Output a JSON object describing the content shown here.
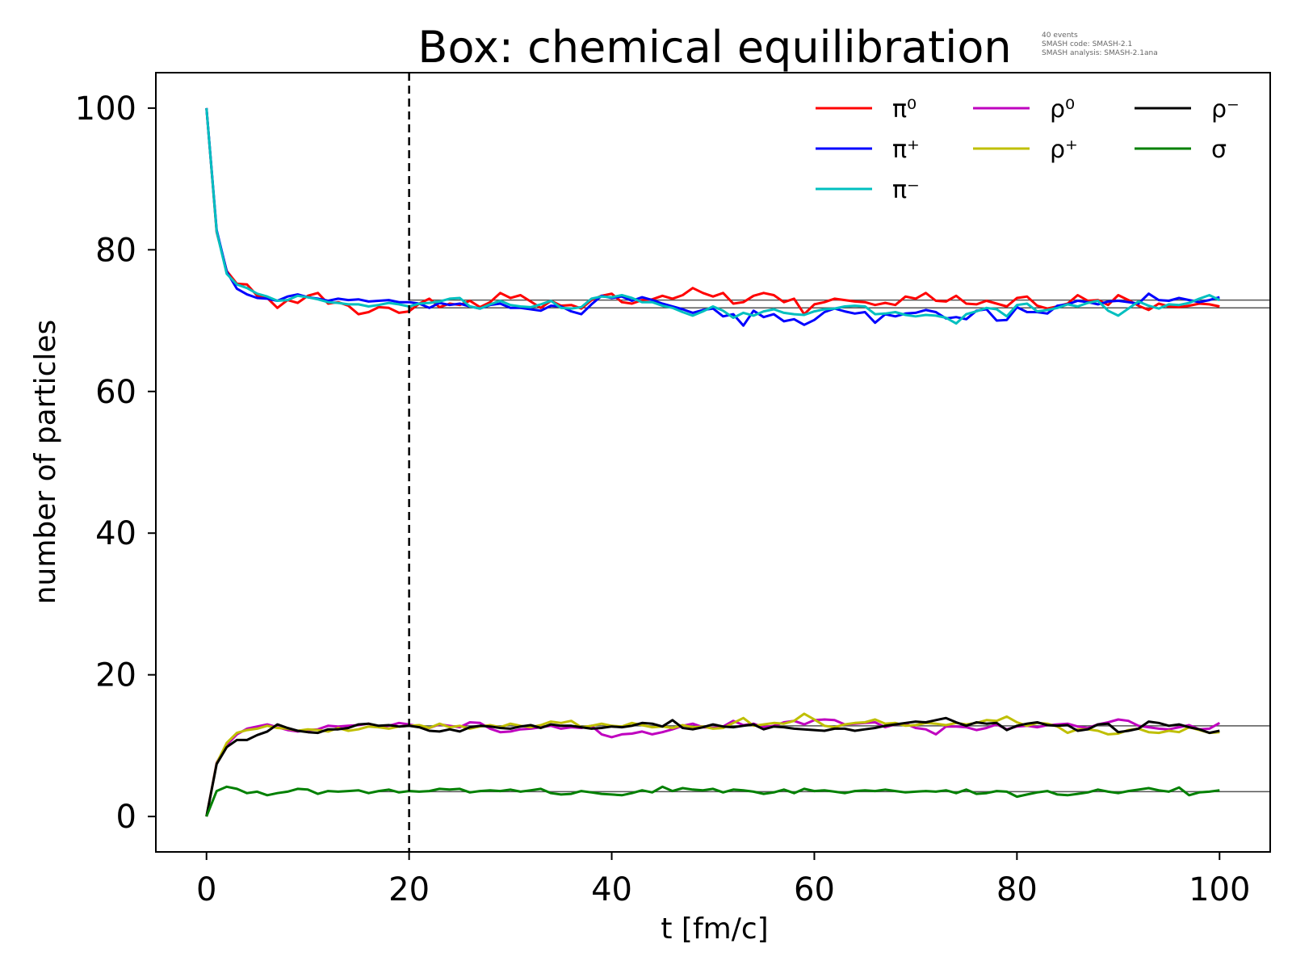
{
  "chart_data": {
    "type": "line",
    "title": "Box: chemical equilibration",
    "annotation_lines": [
      "40 events",
      "SMASH code:      SMASH-2.1",
      "SMASH analysis:  SMASH-2.1ana"
    ],
    "xlabel": "t [fm/c]",
    "ylabel": "number of particles",
    "xlim": [
      -5,
      105
    ],
    "ylim": [
      -5,
      105
    ],
    "xticks": [
      0,
      20,
      40,
      60,
      80,
      100
    ],
    "yticks": [
      0,
      20,
      40,
      60,
      80,
      100
    ],
    "grid": false,
    "legend_position": "top-right",
    "legend_columns": 3,
    "vline_x": 20,
    "x": [
      0,
      1,
      2,
      3,
      4,
      5,
      6,
      7,
      8,
      9,
      10,
      11,
      12,
      13,
      14,
      15,
      16,
      17,
      18,
      19,
      20,
      21,
      22,
      23,
      24,
      25,
      26,
      27,
      28,
      29,
      30,
      31,
      32,
      33,
      34,
      35,
      36,
      37,
      38,
      39,
      40,
      41,
      42,
      43,
      44,
      45,
      46,
      47,
      48,
      49,
      50,
      51,
      52,
      53,
      54,
      55,
      56,
      57,
      58,
      59,
      60,
      61,
      62,
      63,
      64,
      65,
      66,
      67,
      68,
      69,
      70,
      71,
      72,
      73,
      74,
      75,
      76,
      77,
      78,
      79,
      80,
      81,
      82,
      83,
      84,
      85,
      86,
      87,
      88,
      89,
      90,
      91,
      92,
      93,
      94,
      95,
      96,
      97,
      98,
      99,
      100
    ],
    "series": [
      {
        "name": "π⁰",
        "color": "#ff0000",
        "values": [
          100,
          82.5,
          77.0,
          75.2,
          75.1,
          73.5,
          73.2,
          71.8,
          72.9,
          72.5,
          73.5,
          73.9,
          72.4,
          72.6,
          72.1,
          70.9,
          71.2,
          71.9,
          71.8,
          71.1,
          71.3,
          72.4,
          73.1,
          71.9,
          72.4,
          72.2,
          72.8,
          71.9,
          72.6,
          73.9,
          73.2,
          73.6,
          72.7,
          71.8,
          72.8,
          72.1,
          72.2,
          71.7,
          72.9,
          73.5,
          73.8,
          72.6,
          72.4,
          72.9,
          73.0,
          73.5,
          73.1,
          73.6,
          74.6,
          73.9,
          73.4,
          73.9,
          72.4,
          72.6,
          73.5,
          73.9,
          73.6,
          72.6,
          73.1,
          70.9,
          72.3,
          72.6,
          73.1,
          72.9,
          72.7,
          72.6,
          72.2,
          72.5,
          72.2,
          73.4,
          73.1,
          73.9,
          72.8,
          72.7,
          73.5,
          72.4,
          72.3,
          72.8,
          72.4,
          72.0,
          73.2,
          73.4,
          72.1,
          71.7,
          72.0,
          72.4,
          73.6,
          72.8,
          72.9,
          72.2,
          73.6,
          72.9,
          72.1,
          71.5,
          72.4,
          72.0,
          71.9,
          72.1,
          72.4,
          72.3,
          72.0
        ]
      },
      {
        "name": "π⁺",
        "color": "#0000ff",
        "values": [
          100,
          82.8,
          76.9,
          74.5,
          73.7,
          73.2,
          73.1,
          72.8,
          73.4,
          73.7,
          73.3,
          73.1,
          72.8,
          73.1,
          72.9,
          73.0,
          72.7,
          72.8,
          72.9,
          72.6,
          72.6,
          72.4,
          71.8,
          72.5,
          72.2,
          72.4,
          72.0,
          71.7,
          72.2,
          72.4,
          71.8,
          71.8,
          71.6,
          71.4,
          72.1,
          72.0,
          71.3,
          70.9,
          72.3,
          73.5,
          73.2,
          73.4,
          72.8,
          73.3,
          72.9,
          72.4,
          72.0,
          71.6,
          71.1,
          71.5,
          71.7,
          70.6,
          70.9,
          69.3,
          71.4,
          70.5,
          70.9,
          69.9,
          70.2,
          69.4,
          70.1,
          71.2,
          71.7,
          71.3,
          71.0,
          71.2,
          69.7,
          70.9,
          70.6,
          71.0,
          71.1,
          71.5,
          71.2,
          70.3,
          70.5,
          70.2,
          71.4,
          71.6,
          70.0,
          70.1,
          71.9,
          71.2,
          71.2,
          71.0,
          72.1,
          72.3,
          72.8,
          72.6,
          72.3,
          72.7,
          72.8,
          72.6,
          72.4,
          73.8,
          72.9,
          72.8,
          73.2,
          72.9,
          72.6,
          72.9,
          73.3
        ]
      },
      {
        "name": "π⁻",
        "color": "#00bfbf",
        "values": [
          100,
          82.6,
          76.6,
          75.1,
          74.6,
          73.8,
          73.4,
          72.8,
          72.9,
          73.5,
          73.3,
          73.0,
          72.6,
          72.5,
          72.3,
          72.3,
          72.0,
          72.2,
          72.5,
          72.3,
          72.0,
          72.4,
          72.5,
          72.7,
          73.1,
          73.2,
          72.0,
          71.7,
          72.3,
          72.8,
          72.2,
          72.0,
          71.9,
          72.3,
          72.8,
          71.8,
          71.7,
          71.9,
          73.1,
          73.4,
          73.3,
          73.6,
          73.2,
          72.6,
          72.6,
          72.1,
          71.8,
          71.2,
          70.7,
          71.3,
          72.0,
          71.4,
          70.4,
          71.1,
          70.7,
          71.3,
          71.6,
          71.1,
          70.9,
          70.8,
          71.3,
          71.6,
          71.7,
          72.0,
          72.1,
          72.0,
          70.9,
          71.0,
          71.2,
          70.8,
          70.6,
          70.8,
          70.7,
          70.4,
          69.6,
          70.9,
          71.3,
          71.8,
          71.6,
          70.6,
          72.2,
          72.4,
          71.3,
          71.5,
          71.8,
          72.3,
          72.0,
          72.5,
          72.8,
          71.4,
          70.7,
          71.7,
          72.7,
          72.1,
          71.7,
          72.3,
          72.2,
          72.5,
          73.1,
          73.6,
          72.9
        ]
      },
      {
        "name": "ρ⁰",
        "color": "#bf00bf",
        "values": [
          0,
          7.6,
          10.1,
          11.6,
          12.4,
          12.7,
          13.0,
          12.6,
          12.2,
          12.0,
          12.2,
          12.3,
          12.8,
          12.7,
          12.8,
          12.9,
          13.1,
          12.6,
          12.8,
          13.2,
          13.0,
          12.7,
          12.5,
          13.0,
          12.8,
          12.6,
          13.3,
          13.2,
          12.4,
          11.9,
          12.0,
          12.3,
          12.4,
          12.6,
          12.8,
          12.4,
          12.6,
          12.5,
          12.8,
          11.6,
          11.2,
          11.6,
          11.7,
          12.0,
          11.6,
          11.9,
          12.3,
          12.8,
          13.1,
          12.6,
          12.5,
          12.7,
          13.5,
          12.9,
          13.1,
          12.6,
          12.8,
          13.3,
          13.5,
          13.0,
          13.6,
          13.7,
          13.6,
          13.0,
          13.1,
          13.2,
          13.3,
          12.6,
          13.0,
          13.1,
          12.5,
          12.3,
          11.6,
          12.7,
          12.7,
          12.6,
          12.2,
          12.5,
          13.0,
          12.3,
          12.7,
          12.8,
          12.6,
          12.9,
          13.0,
          13.1,
          12.7,
          12.5,
          13.0,
          13.3,
          13.7,
          13.5,
          12.8,
          12.6,
          12.4,
          12.3,
          12.6,
          12.9,
          12.3,
          12.4,
          13.2
        ]
      },
      {
        "name": "ρ⁺",
        "color": "#bfbf00",
        "values": [
          0,
          7.5,
          10.4,
          11.8,
          12.2,
          12.4,
          12.8,
          12.5,
          12.4,
          12.1,
          12.3,
          12.2,
          12.0,
          12.5,
          12.1,
          12.3,
          12.7,
          12.6,
          12.4,
          12.7,
          12.8,
          12.9,
          12.5,
          13.1,
          12.6,
          12.8,
          12.4,
          12.7,
          12.9,
          12.6,
          13.1,
          12.8,
          12.6,
          12.9,
          13.4,
          13.2,
          13.5,
          12.6,
          12.8,
          13.1,
          12.8,
          12.7,
          13.2,
          12.9,
          12.6,
          12.7,
          12.5,
          12.9,
          12.6,
          12.7,
          12.4,
          12.5,
          13.2,
          13.9,
          12.8,
          13.0,
          13.2,
          13.1,
          13.5,
          14.5,
          13.7,
          12.8,
          12.6,
          13.0,
          13.2,
          13.3,
          13.7,
          13.1,
          13.2,
          12.8,
          12.9,
          13.2,
          13.1,
          12.9,
          13.2,
          13.0,
          13.2,
          13.6,
          13.5,
          14.1,
          13.3,
          12.8,
          13.2,
          13.1,
          12.7,
          11.8,
          12.3,
          12.3,
          12.1,
          11.6,
          11.7,
          12.2,
          12.4,
          11.9,
          11.8,
          12.1,
          11.9,
          12.6,
          12.2,
          11.8,
          11.9
        ]
      },
      {
        "name": "ρ⁻",
        "color": "#000000",
        "values": [
          0,
          7.4,
          9.8,
          10.8,
          10.8,
          11.5,
          12.0,
          13.0,
          12.5,
          12.1,
          11.9,
          11.8,
          12.3,
          12.3,
          12.5,
          13.0,
          13.1,
          12.8,
          12.9,
          12.7,
          12.8,
          12.6,
          12.1,
          12.0,
          12.3,
          12.0,
          12.6,
          12.8,
          12.7,
          12.5,
          12.4,
          12.7,
          12.9,
          12.5,
          13.0,
          12.8,
          12.8,
          12.6,
          12.4,
          12.5,
          12.7,
          12.6,
          12.8,
          13.2,
          13.1,
          12.7,
          13.6,
          12.5,
          12.3,
          12.6,
          13.0,
          12.7,
          12.6,
          12.8,
          13.0,
          12.3,
          12.7,
          12.6,
          12.4,
          12.3,
          12.2,
          12.1,
          12.4,
          12.4,
          12.1,
          12.3,
          12.5,
          12.8,
          13.0,
          13.2,
          13.4,
          13.3,
          13.6,
          13.9,
          13.3,
          12.8,
          13.3,
          13.1,
          13.2,
          12.2,
          12.8,
          13.1,
          13.3,
          12.9,
          12.8,
          12.9,
          12.1,
          12.3,
          13.0,
          13.1,
          11.9,
          12.1,
          12.4,
          13.4,
          13.2,
          12.8,
          13.0,
          12.6,
          12.3,
          11.8,
          12.1
        ]
      },
      {
        "name": "σ",
        "color": "#008000",
        "values": [
          0,
          3.6,
          4.2,
          3.9,
          3.3,
          3.5,
          3.0,
          3.3,
          3.5,
          3.9,
          3.8,
          3.2,
          3.6,
          3.5,
          3.6,
          3.7,
          3.3,
          3.6,
          3.8,
          3.4,
          3.6,
          3.5,
          3.6,
          3.9,
          3.8,
          3.9,
          3.4,
          3.6,
          3.7,
          3.6,
          3.8,
          3.5,
          3.7,
          3.9,
          3.3,
          3.1,
          3.2,
          3.6,
          3.4,
          3.2,
          3.1,
          3.0,
          3.3,
          3.7,
          3.4,
          4.2,
          3.6,
          4.0,
          3.8,
          3.7,
          3.9,
          3.4,
          3.8,
          3.7,
          3.5,
          3.2,
          3.4,
          3.8,
          3.3,
          3.9,
          3.6,
          3.7,
          3.5,
          3.3,
          3.6,
          3.7,
          3.6,
          3.8,
          3.6,
          3.4,
          3.5,
          3.6,
          3.5,
          3.7,
          3.3,
          3.8,
          3.2,
          3.3,
          3.6,
          3.5,
          2.8,
          3.1,
          3.4,
          3.6,
          3.1,
          3.0,
          3.2,
          3.4,
          3.8,
          3.5,
          3.3,
          3.6,
          3.8,
          4.0,
          3.7,
          3.5,
          4.1,
          3.0,
          3.4,
          3.5,
          3.7
        ]
      }
    ],
    "equilibrium_lines": [
      {
        "y": 72.9,
        "x_start": 20,
        "x_end": 105,
        "color": "#555555"
      },
      {
        "y": 71.8,
        "x_start": 20,
        "x_end": 105,
        "color": "#555555"
      },
      {
        "y": 12.8,
        "x_start": 20,
        "x_end": 105,
        "color": "#555555"
      },
      {
        "y": 3.5,
        "x_start": 17,
        "x_end": 105,
        "color": "#555555"
      }
    ]
  }
}
